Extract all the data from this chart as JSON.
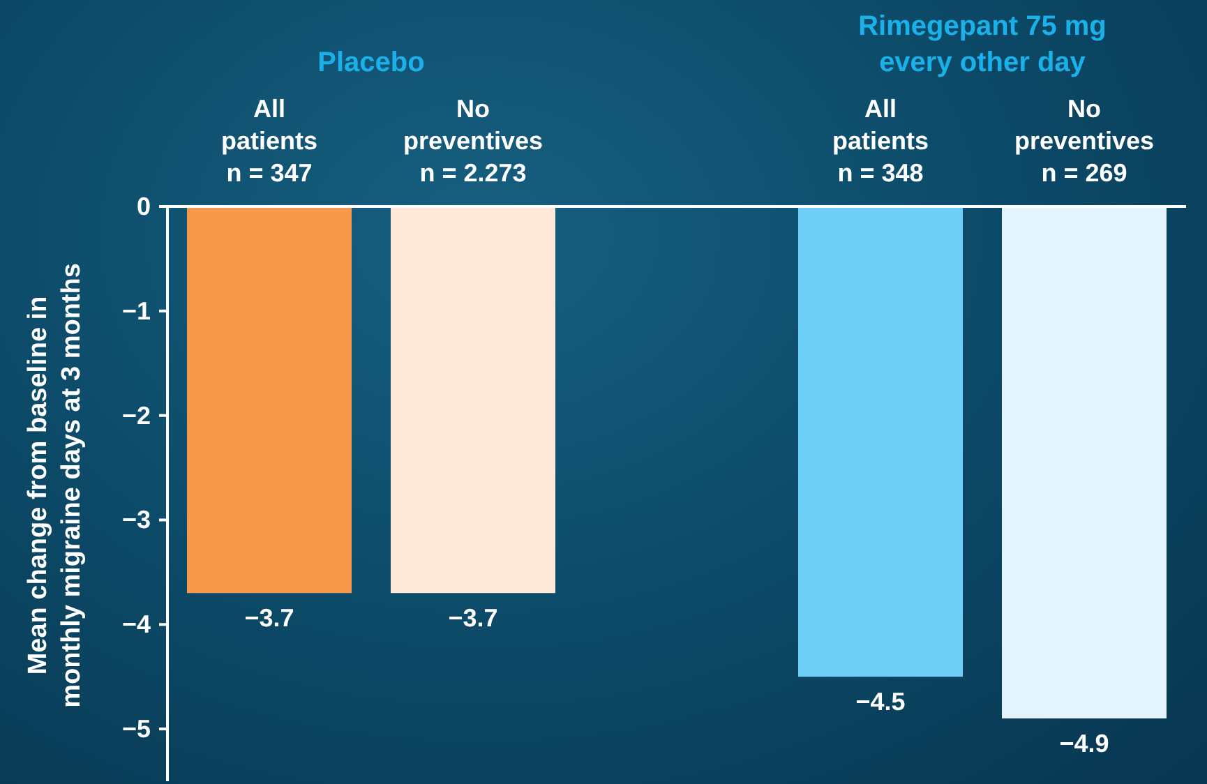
{
  "chart_data": {
    "type": "bar",
    "ylabel": "Mean change from baseline in\nmonthly migraine days at 3 months",
    "categories": [
      "All\npatients\nn = 347",
      "No\npreventives\nn = 2.273",
      null,
      "All\npatients\nn = 348",
      "No\npreventives\nn = 269"
    ],
    "values": [
      -3.7,
      -3.7,
      null,
      -4.5,
      -4.9
    ],
    "colors": [
      "#f7994a",
      "#fde8da",
      "#ffffff",
      "#6dcff6",
      "#e3f4fc"
    ],
    "ylim": [
      -5.5,
      0
    ],
    "yticks": [
      0,
      {
        "value": -1,
        "label": "−1"
      },
      {
        "value": -2,
        "label": "−2"
      },
      {
        "value": -3,
        "label": "−3"
      },
      {
        "value": -4,
        "label": "−4"
      },
      {
        "value": -5,
        "label": "−5"
      }
    ],
    "data_labels": true,
    "grid": false,
    "legend": false,
    "annotations": [
      "Placebo",
      "Rimegepant 75 mg\nevery other day"
    ]
  }
}
